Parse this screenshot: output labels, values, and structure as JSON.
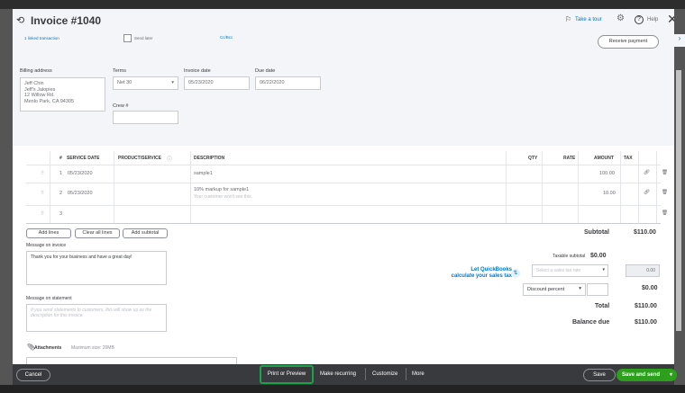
{
  "header": {
    "title": "Invoice #1040",
    "take_tour": "Take a tour",
    "help": "Help",
    "linked": "1 linked transaction",
    "send_later": "Send later",
    "cc_bcc": "Cc/Bcc",
    "receive_payment": "Receive payment"
  },
  "form": {
    "billing_label": "Billing address",
    "billing_lines": [
      "Jeff Chin",
      "Jeff's Jalopies",
      "12 Willow Rd.",
      "Menlo Park, CA  94305"
    ],
    "terms_label": "Terms",
    "terms_value": "Net 30",
    "invoice_date_label": "Invoice date",
    "invoice_date": "05/23/2020",
    "due_date_label": "Due date",
    "due_date": "06/22/2020",
    "crew_label": "Crew #",
    "crew_value": ""
  },
  "table": {
    "columns": [
      "#",
      "SERVICE DATE",
      "PRODUCT/SERVICE",
      "DESCRIPTION",
      "QTY",
      "RATE",
      "AMOUNT",
      "TAX"
    ],
    "rows": [
      {
        "num": "1",
        "date": "05/23/2020",
        "product": "",
        "desc": "sample1",
        "note": "",
        "qty": "",
        "rate": "",
        "amount": "100.00"
      },
      {
        "num": "2",
        "date": "05/23/2020",
        "product": "",
        "desc": "10% markup for sample1",
        "note": "Your customer won't see this.",
        "qty": "",
        "rate": "",
        "amount": "10.00"
      },
      {
        "num": "3",
        "date": "",
        "product": "",
        "desc": "",
        "note": "",
        "qty": "",
        "rate": "",
        "amount": ""
      }
    ],
    "add_lines": "Add lines",
    "clear_lines": "Clear all lines",
    "add_subtotal": "Add subtotal"
  },
  "totals": {
    "subtotal_label": "Subtotal",
    "subtotal": "$110.00",
    "taxable_label": "Taxable subtotal",
    "taxable": "$0.00",
    "tax_rate_placeholder": "Select a sales tax rate",
    "tax_value": "0.00",
    "qb_tax_line1": "Let QuickBooks",
    "qb_tax_line2": "calculate your sales tax",
    "discount_type": "Discount percent",
    "discount_value": "",
    "discount_amount": "$0.00",
    "total_label": "Total",
    "total": "$110.00",
    "balance_label": "Balance due",
    "balance": "$110.00"
  },
  "messages": {
    "invoice_label": "Message on invoice",
    "invoice_text": "Thank you for your business and have a great day!",
    "statement_label": "Message on statement",
    "statement_placeholder": "If you send statements to customers, this will show up as the description for this invoice.",
    "attachments": "Attachments",
    "max_size": "Maximum size: 20MB"
  },
  "footer": {
    "cancel": "Cancel",
    "print": "Print or Preview",
    "recurring": "Make recurring",
    "customize": "Customize",
    "more": "More",
    "save": "Save",
    "save_send": "Save and send"
  },
  "colors": {
    "accent_green": "#2ca01c",
    "link_blue": "#0077c5",
    "highlight": "#1aa34a"
  }
}
